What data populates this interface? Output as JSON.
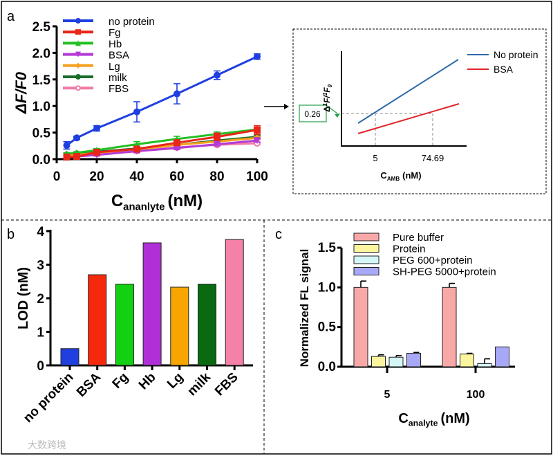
{
  "panel_labels": {
    "a": "a",
    "b": "b",
    "c": "c"
  },
  "watermark": "大数跨境",
  "chart_data": [
    {
      "id": "a",
      "type": "line",
      "xlabel_main": "C",
      "xlabel_sub": "ananlyte",
      "xlabel_unit": "(nM)",
      "ylabel": "ΔF/F0",
      "ylabel_parts": [
        "Δ",
        "F/F",
        "0"
      ],
      "xlim": [
        0,
        100
      ],
      "ylim": [
        0,
        2.5
      ],
      "xticks": [
        "0",
        "20",
        "40",
        "60",
        "80",
        "100"
      ],
      "yticks": [
        "0.0",
        "0.5",
        "1.0",
        "1.5",
        "2.0",
        "2.5"
      ],
      "legend": "top-left",
      "x": [
        5,
        10,
        20,
        40,
        60,
        80,
        100
      ],
      "series": [
        {
          "name": "no protein",
          "color": "#1f3fe0",
          "marker": "circle",
          "values": [
            0.26,
            0.4,
            0.58,
            0.89,
            1.23,
            1.58,
            1.93
          ],
          "errors": [
            0.07,
            0.03,
            0.05,
            0.19,
            0.19,
            0.08,
            0.05
          ]
        },
        {
          "name": "Fg",
          "color": "#e8261a",
          "marker": "square",
          "values": [
            0.04,
            0.05,
            0.13,
            0.19,
            0.31,
            0.42,
            0.55
          ],
          "errors": [
            0.02,
            0.02,
            0.03,
            0.04,
            0.05,
            0.07,
            0.08
          ]
        },
        {
          "name": "Hb",
          "color": "#22c022",
          "marker": "triangle",
          "values": [
            0.1,
            0.12,
            0.17,
            0.28,
            0.38,
            0.47,
            0.56
          ],
          "errors": [
            0.02,
            0.02,
            0.03,
            0.05,
            0.05,
            0.04,
            0.04
          ]
        },
        {
          "name": "BSA",
          "color": "#b43ad6",
          "marker": "triangle-down",
          "values": [
            0.03,
            0.05,
            0.08,
            0.15,
            0.21,
            0.28,
            0.35
          ],
          "errors": [
            0.02,
            0.02,
            0.02,
            0.03,
            0.03,
            0.03,
            0.03
          ]
        },
        {
          "name": "Lg",
          "color": "#f5a020",
          "marker": "diamond",
          "values": [
            0.06,
            0.08,
            0.12,
            0.18,
            0.27,
            0.33,
            0.4
          ],
          "errors": [
            0.02,
            0.02,
            0.02,
            0.03,
            0.03,
            0.03,
            0.03
          ]
        },
        {
          "name": "milk",
          "color": "#1a6e2a",
          "marker": "circle",
          "values": [
            0.08,
            0.1,
            0.14,
            0.2,
            0.27,
            0.35,
            0.42
          ],
          "errors": [
            0.02,
            0.02,
            0.02,
            0.03,
            0.03,
            0.03,
            0.03
          ]
        },
        {
          "name": "FBS",
          "color": "#f07aa8",
          "marker": "circle-open",
          "values": [
            0.07,
            0.08,
            0.1,
            0.16,
            0.22,
            0.27,
            0.3
          ],
          "errors": [
            0.02,
            0.02,
            0.02,
            0.02,
            0.02,
            0.02,
            0.02
          ]
        }
      ]
    },
    {
      "id": "a-inset",
      "type": "line",
      "ylabel_parts": [
        "Δ",
        "1",
        "F/",
        "1",
        "F",
        "0"
      ],
      "xlabel_main": "C",
      "xlabel_sub": "AMB",
      "xlabel_unit": "(nM)",
      "xticks": [
        "5",
        "74.69"
      ],
      "annotation": "0.26",
      "legend": "top-right",
      "series": [
        {
          "name": "No protein",
          "color": "#2d6aa8"
        },
        {
          "name": "BSA",
          "color": "#e0252a"
        }
      ]
    },
    {
      "id": "b",
      "type": "bar",
      "ylabel": "LOD (nM)",
      "ylim": [
        0,
        4
      ],
      "yticks": [
        "0",
        "1",
        "2",
        "3",
        "4"
      ],
      "categories": [
        "no protein",
        "BSA",
        "Fg",
        "Hb",
        "Lg",
        "milk",
        "FBS"
      ],
      "values": [
        0.5,
        2.7,
        2.42,
        3.65,
        2.33,
        2.42,
        3.75
      ],
      "colors": [
        "#1f3fe0",
        "#f52a0c",
        "#12d012",
        "#b030d8",
        "#f7a500",
        "#0a6a12",
        "#f580a8"
      ]
    },
    {
      "id": "c",
      "type": "bar",
      "ylabel": "Normalized FL signal",
      "xlabel_main": "C",
      "xlabel_sub": "analyte",
      "xlabel_unit": "(nM)",
      "ylim": [
        0,
        1.5
      ],
      "yticks": [
        "0.0",
        "0.5",
        "1.0",
        "1.5"
      ],
      "categories": [
        "5",
        "100"
      ],
      "legend": "top",
      "series": [
        {
          "name": "Pure buffer",
          "color": "#f9a8a8",
          "values": [
            1.0,
            1.0
          ],
          "errors": [
            0.08,
            0.05
          ]
        },
        {
          "name": "Protein",
          "color": "#fbf5a0",
          "values": [
            0.13,
            0.16
          ],
          "errors": [
            0.02,
            0.01
          ]
        },
        {
          "name": "PEG 600+protein",
          "color": "#d4f6f6",
          "values": [
            0.12,
            0.04
          ],
          "errors": [
            0.02,
            0.06
          ]
        },
        {
          "name": "SH-PEG 5000+protein",
          "color": "#a8a8f8",
          "values": [
            0.17,
            0.25
          ],
          "errors": [
            0.01,
            0.0
          ]
        }
      ]
    }
  ]
}
